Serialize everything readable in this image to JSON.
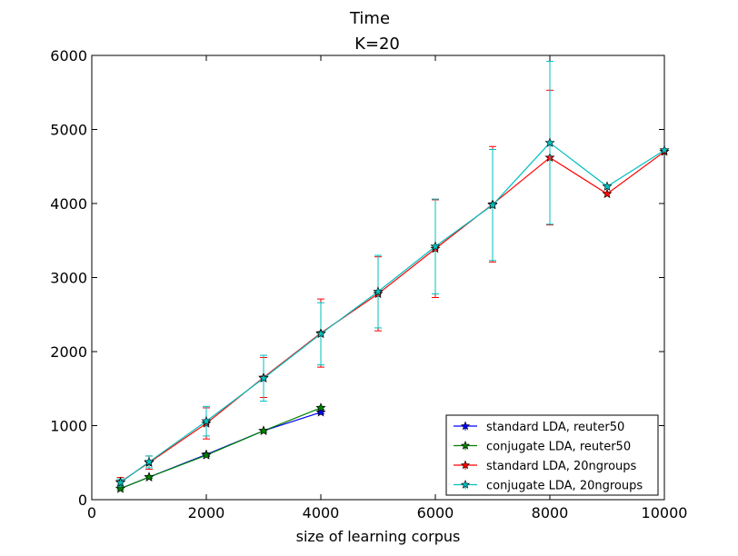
{
  "chart_data": {
    "type": "line",
    "title": "Time",
    "subtitle": "K=20",
    "xlabel": "size of learning corpus",
    "ylabel": "",
    "xlim": [
      0,
      10000
    ],
    "ylim": [
      0,
      6000
    ],
    "xticks": [
      0,
      2000,
      4000,
      6000,
      8000,
      10000
    ],
    "yticks": [
      0,
      1000,
      2000,
      3000,
      4000,
      5000,
      6000
    ],
    "grid": false,
    "legend_position": "bottom-right",
    "series": [
      {
        "name": "standard LDA, reuter50",
        "color": "#0000ff",
        "marker": "star",
        "x": [
          500,
          1000,
          2000,
          3000,
          4000
        ],
        "y": [
          150,
          305,
          610,
          930,
          1180
        ],
        "err": [
          15,
          15,
          20,
          20,
          20
        ]
      },
      {
        "name": "conjugate LDA, reuter50",
        "color": "#008000",
        "marker": "star",
        "x": [
          500,
          1000,
          2000,
          3000,
          4000
        ],
        "y": [
          150,
          305,
          600,
          930,
          1240
        ],
        "err": [
          15,
          15,
          20,
          20,
          20
        ]
      },
      {
        "name": "standard LDA, 20ngroups",
        "color": "#ff0000",
        "marker": "star",
        "x": [
          500,
          1000,
          2000,
          3000,
          4000,
          5000,
          6000,
          7000,
          8000,
          9000,
          10000
        ],
        "y": [
          240,
          500,
          1030,
          1650,
          2250,
          2780,
          3390,
          3990,
          4620,
          4130,
          4700
        ],
        "err": [
          60,
          90,
          210,
          270,
          460,
          500,
          660,
          780,
          910,
          0,
          0
        ]
      },
      {
        "name": "conjugate LDA, 20ngroups",
        "color": "#00bfbf",
        "marker": "star",
        "x": [
          500,
          1000,
          2000,
          3000,
          4000,
          5000,
          6000,
          7000,
          8000,
          9000,
          10000
        ],
        "y": [
          230,
          510,
          1060,
          1640,
          2240,
          2810,
          3420,
          3980,
          4820,
          4230,
          4720
        ],
        "err": [
          50,
          80,
          200,
          310,
          420,
          490,
          640,
          750,
          1100,
          0,
          0
        ]
      }
    ]
  }
}
